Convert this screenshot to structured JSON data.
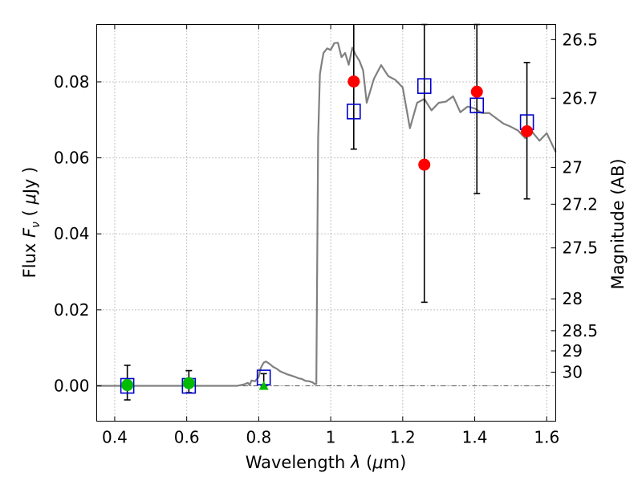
{
  "chart_data": {
    "type": "scatter",
    "xlabel": "Wavelength  λ (μm)",
    "ylabel": "Flux  F_ν  ( μJy )",
    "ylabel_parts": {
      "pre": "Flux  ",
      "f": "F",
      "sub": "ν",
      "mid": "  ( ",
      "mu": "μ",
      "post": "Jy )"
    },
    "xlabel_parts": {
      "pre": "Wavelength  ",
      "lambda": "λ",
      "mid": " (",
      "mu": "μ",
      "post": "m)"
    },
    "right_ylabel": "Magnitude (AB)",
    "xlim": [
      0.35,
      1.625
    ],
    "ylim": [
      -0.0093,
      0.0951
    ],
    "grid": true,
    "x_ticks": [
      {
        "value": 0.4,
        "label": "0.4"
      },
      {
        "value": 0.6,
        "label": "0.6"
      },
      {
        "value": 0.8,
        "label": "0.8"
      },
      {
        "value": 1.0,
        "label": "1"
      },
      {
        "value": 1.2,
        "label": "1.2"
      },
      {
        "value": 1.4,
        "label": "1.4"
      },
      {
        "value": 1.6,
        "label": "1.6"
      }
    ],
    "y_ticks": [
      {
        "value": 0.0,
        "label": "0.00"
      },
      {
        "value": 0.02,
        "label": "0.02"
      },
      {
        "value": 0.04,
        "label": "0.04"
      },
      {
        "value": 0.06,
        "label": "0.06"
      },
      {
        "value": 0.08,
        "label": "0.08"
      }
    ],
    "right_ticks": [
      {
        "flux": 0.0911,
        "label": "26.5"
      },
      {
        "flux": 0.0757,
        "label": "26.7"
      },
      {
        "flux": 0.0575,
        "label": "27"
      },
      {
        "flux": 0.0478,
        "label": "27.2"
      },
      {
        "flux": 0.0363,
        "label": "27.5"
      },
      {
        "flux": 0.0229,
        "label": "28"
      },
      {
        "flux": 0.0145,
        "label": "28.5"
      },
      {
        "flux": 0.0092,
        "label": "29"
      },
      {
        "flux": 0.0036,
        "label": "30"
      }
    ],
    "zero_line": 0.0,
    "colors": {
      "model": "#808080",
      "model_points": "#0000cc",
      "detections": "#ff0000",
      "optical_detections": "#00bb00",
      "upper_limit": "#00bb00",
      "errorbar": "#000000",
      "grid": "#888888"
    },
    "model_sed": {
      "x": [
        0.35,
        0.74,
        0.75,
        0.76,
        0.77,
        0.775,
        0.78,
        0.79,
        0.8,
        0.805,
        0.81,
        0.815,
        0.82,
        0.83,
        0.84,
        0.85,
        0.86,
        0.87,
        0.88,
        0.89,
        0.9,
        0.91,
        0.92,
        0.93,
        0.94,
        0.95,
        0.955,
        0.96,
        0.965,
        0.97,
        0.975,
        0.98,
        0.99,
        1.0,
        1.01,
        1.02,
        1.03,
        1.04,
        1.05,
        1.06,
        1.07,
        1.08,
        1.09,
        1.1,
        1.12,
        1.14,
        1.16,
        1.18,
        1.2,
        1.22,
        1.24,
        1.26,
        1.28,
        1.3,
        1.32,
        1.34,
        1.36,
        1.38,
        1.4,
        1.42,
        1.44,
        1.46,
        1.48,
        1.5,
        1.52,
        1.54,
        1.56,
        1.58,
        1.6,
        1.625
      ],
      "y": [
        0.0,
        0.0,
        0.0002,
        0.0004,
        0.0008,
        0.0002,
        0.0014,
        0.0012,
        0.0024,
        0.0045,
        0.0055,
        0.0062,
        0.0064,
        0.0058,
        0.005,
        0.0045,
        0.0038,
        0.0034,
        0.003,
        0.0027,
        0.0024,
        0.002,
        0.0018,
        0.0013,
        0.0012,
        0.0009,
        0.0005,
        0.0005,
        0.065,
        0.082,
        0.085,
        0.0876,
        0.0888,
        0.0884,
        0.0902,
        0.0903,
        0.0865,
        0.0876,
        0.0845,
        0.089,
        0.087,
        0.0855,
        0.083,
        0.0745,
        0.0808,
        0.0844,
        0.0815,
        0.0805,
        0.0785,
        0.0678,
        0.0745,
        0.0755,
        0.0725,
        0.0745,
        0.0748,
        0.0762,
        0.072,
        0.0735,
        0.073,
        0.0718,
        0.0718,
        0.0704,
        0.069,
        0.0682,
        0.0672,
        0.0652,
        0.0668,
        0.0645,
        0.0665,
        0.0615
      ]
    },
    "model_points": [
      {
        "x": 0.435,
        "y": 0.0
      },
      {
        "x": 0.606,
        "y": 0.0
      },
      {
        "x": 0.814,
        "y": 0.0022
      },
      {
        "x": 1.064,
        "y": 0.0722
      },
      {
        "x": 1.26,
        "y": 0.0789
      },
      {
        "x": 1.406,
        "y": 0.0738
      },
      {
        "x": 1.545,
        "y": 0.0694
      }
    ],
    "detections": [
      {
        "x": 1.064,
        "y": 0.0801,
        "yerr_low": 0.0178,
        "yerr_high": 0.0151
      },
      {
        "x": 1.26,
        "y": 0.0582,
        "yerr_low": 0.0362,
        "yerr_high": 0.0369
      },
      {
        "x": 1.406,
        "y": 0.0774,
        "yerr_low": 0.0268,
        "yerr_high": 0.0177
      },
      {
        "x": 1.545,
        "y": 0.067,
        "yerr_low": 0.0178,
        "yerr_high": 0.0181
      }
    ],
    "optical_detections": [
      {
        "x": 0.435,
        "y": 0.0002,
        "yerr_low": 0.0039,
        "yerr_high": 0.0052
      },
      {
        "x": 0.606,
        "y": 0.0007,
        "yerr_low": 0.0025,
        "yerr_high": 0.0033
      }
    ],
    "upper_limits": [
      {
        "x": 0.814,
        "y": 0.0,
        "yerr_low": 0.0,
        "yerr_high": 0.0032
      }
    ]
  }
}
